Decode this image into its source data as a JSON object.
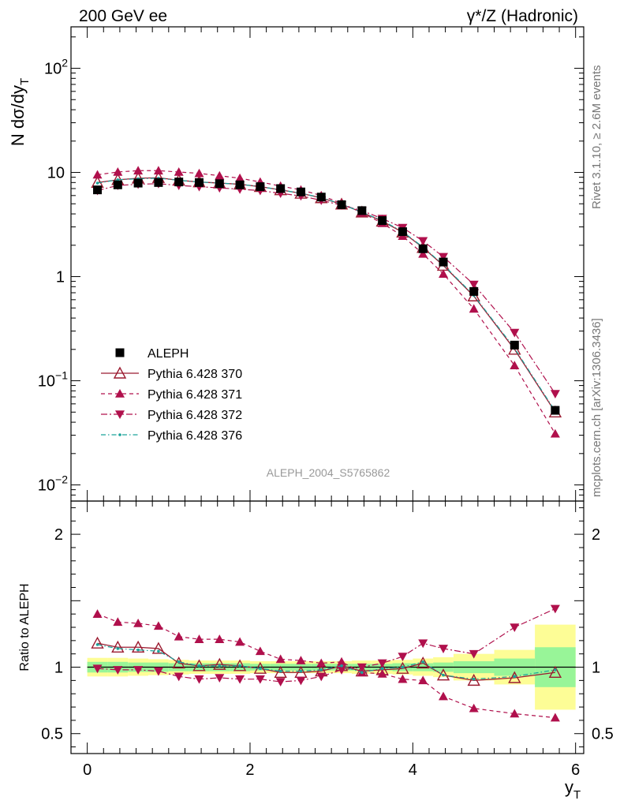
{
  "header": {
    "left_title": "200 GeV ee",
    "right_title": "γ*/Z (Hadronic)"
  },
  "side_labels": {
    "rivet": "Rivet 3.1.10, ≥ 2.6M events",
    "mcplots": "mcplots.cern.ch [arXiv:1306.3436]"
  },
  "analysis_id": "ALEPH_2004_S5765862",
  "colors": {
    "data": "#000000",
    "p370": "#9b1b30",
    "p371": "#b0104c",
    "p372": "#b0104c",
    "p376": "#1aa39a",
    "band_inner": "#98f598",
    "band_outer": "#fdfd96"
  },
  "chart_data": [
    {
      "type": "line",
      "panel": "main",
      "ylabel": "N dσ/dy",
      "ylabel_sub": "T",
      "yscale": "log",
      "ylim": [
        0.007,
        250
      ],
      "xlim": [
        -0.2,
        6.1
      ],
      "ytick_labels": [
        {
          "value": 0.01,
          "base": "10",
          "exp": "−2"
        },
        {
          "value": 0.1,
          "base": "10",
          "exp": "−1"
        },
        {
          "value": 1,
          "base": "1",
          "exp": ""
        },
        {
          "value": 10,
          "base": "10",
          "exp": ""
        },
        {
          "value": 100,
          "base": "10",
          "exp": "2"
        }
      ],
      "x": [
        0.125,
        0.375,
        0.625,
        0.875,
        1.125,
        1.375,
        1.625,
        1.875,
        2.125,
        2.375,
        2.625,
        2.875,
        3.125,
        3.375,
        3.625,
        3.875,
        4.125,
        4.375,
        4.75,
        5.25,
        5.75
      ],
      "series": [
        {
          "name": "ALEPH",
          "key": "data",
          "values": [
            6.8,
            7.6,
            7.9,
            8.0,
            8.1,
            8.0,
            7.8,
            7.6,
            7.3,
            7.0,
            6.5,
            5.8,
            4.9,
            4.3,
            3.45,
            2.7,
            1.85,
            1.38,
            0.72,
            0.22,
            0.052
          ]
        },
        {
          "name": "Pythia 6.428 370",
          "key": "p370",
          "values": [
            8.0,
            8.5,
            8.8,
            8.9,
            8.4,
            8.1,
            7.9,
            7.7,
            7.3,
            6.8,
            6.3,
            5.7,
            4.95,
            4.15,
            3.4,
            2.67,
            1.9,
            1.28,
            0.65,
            0.2,
            0.05
          ]
        },
        {
          "name": "Pythia 6.428 371",
          "key": "p371",
          "values": [
            9.5,
            10.1,
            10.4,
            10.4,
            10.1,
            9.8,
            9.3,
            8.8,
            8.1,
            7.4,
            6.8,
            6.0,
            5.05,
            4.1,
            3.25,
            2.45,
            1.65,
            1.06,
            0.49,
            0.14,
            0.031
          ]
        },
        {
          "name": "Pythia 6.428 372",
          "key": "p372",
          "values": [
            6.7,
            7.5,
            7.7,
            7.8,
            7.5,
            7.3,
            7.1,
            6.9,
            6.7,
            6.3,
            5.95,
            5.4,
            4.85,
            4.3,
            3.6,
            2.95,
            2.2,
            1.55,
            0.84,
            0.29,
            0.075
          ]
        },
        {
          "name": "Pythia 6.428 376",
          "key": "p376",
          "values": [
            7.9,
            8.5,
            8.7,
            8.8,
            8.4,
            8.1,
            7.9,
            7.7,
            7.3,
            6.8,
            6.3,
            5.75,
            4.95,
            4.15,
            3.45,
            2.7,
            1.92,
            1.3,
            0.66,
            0.205,
            0.051
          ]
        }
      ],
      "legend_position": "lower-left"
    },
    {
      "type": "line",
      "panel": "ratio",
      "ylabel": "Ratio to ALEPH",
      "xlabel": "y",
      "xlabel_sub": "T",
      "ylim": [
        0.35,
        2.25
      ],
      "xlim": [
        -0.2,
        6.1
      ],
      "ytick_labels": [
        {
          "value": 0.5,
          "label": "0.5"
        },
        {
          "value": 1,
          "label": "1"
        },
        {
          "value": 2,
          "label": "2"
        }
      ],
      "xtick_labels": [
        {
          "value": 0,
          "label": "0"
        },
        {
          "value": 2,
          "label": "2"
        },
        {
          "value": 4,
          "label": "4"
        },
        {
          "value": 6,
          "label": "6"
        }
      ],
      "bins": [
        [
          0,
          0.25
        ],
        [
          0.25,
          0.5
        ],
        [
          0.5,
          0.75
        ],
        [
          0.75,
          1.0
        ],
        [
          1.0,
          1.25
        ],
        [
          1.25,
          1.5
        ],
        [
          1.5,
          1.75
        ],
        [
          1.75,
          2.0
        ],
        [
          2.0,
          2.25
        ],
        [
          2.25,
          2.5
        ],
        [
          2.5,
          2.75
        ],
        [
          2.75,
          3.0
        ],
        [
          3.0,
          3.25
        ],
        [
          3.25,
          3.5
        ],
        [
          3.5,
          3.75
        ],
        [
          3.75,
          4.0
        ],
        [
          4.0,
          4.25
        ],
        [
          4.25,
          4.5
        ],
        [
          4.5,
          5.0
        ],
        [
          5.0,
          5.5
        ],
        [
          5.5,
          6.0
        ]
      ],
      "band_inner": [
        0.04,
        0.04,
        0.035,
        0.035,
        0.03,
        0.03,
        0.03,
        0.03,
        0.025,
        0.025,
        0.025,
        0.025,
        0.025,
        0.025,
        0.025,
        0.03,
        0.03,
        0.035,
        0.045,
        0.065,
        0.15
      ],
      "band_outer": [
        0.07,
        0.07,
        0.065,
        0.06,
        0.055,
        0.05,
        0.05,
        0.05,
        0.045,
        0.045,
        0.045,
        0.045,
        0.045,
        0.05,
        0.05,
        0.055,
        0.065,
        0.075,
        0.1,
        0.13,
        0.32
      ],
      "x": [
        0.125,
        0.375,
        0.625,
        0.875,
        1.125,
        1.375,
        1.625,
        1.875,
        2.125,
        2.375,
        2.625,
        2.875,
        3.125,
        3.375,
        3.625,
        3.875,
        4.125,
        4.375,
        4.75,
        5.25,
        5.75
      ],
      "series": [
        {
          "name": "Pythia 6.428 370",
          "key": "p370",
          "values": [
            1.18,
            1.15,
            1.15,
            1.14,
            1.03,
            1.01,
            1.02,
            1.01,
            0.99,
            0.96,
            0.96,
            0.97,
            1.01,
            0.97,
            0.98,
            0.99,
            1.03,
            0.94,
            0.9,
            0.92,
            0.96
          ]
        },
        {
          "name": "Pythia 6.428 371",
          "key": "p371",
          "values": [
            1.4,
            1.34,
            1.33,
            1.31,
            1.23,
            1.21,
            1.21,
            1.19,
            1.12,
            1.06,
            1.05,
            1.03,
            1.04,
            0.96,
            0.95,
            0.91,
            0.9,
            0.78,
            0.69,
            0.65,
            0.62
          ]
        },
        {
          "name": "Pythia 6.428 372",
          "key": "p372",
          "values": [
            0.99,
            0.98,
            0.98,
            0.97,
            0.93,
            0.91,
            0.92,
            0.91,
            0.91,
            0.89,
            0.9,
            0.93,
            0.98,
            1.0,
            1.03,
            1.08,
            1.18,
            1.14,
            1.1,
            1.3,
            1.44
          ]
        },
        {
          "name": "Pythia 6.428 376",
          "key": "p376",
          "values": [
            1.17,
            1.14,
            1.13,
            1.12,
            1.04,
            1.01,
            1.01,
            1.01,
            0.99,
            0.97,
            0.97,
            0.98,
            1.01,
            0.96,
            0.99,
            1.0,
            1.04,
            0.94,
            0.91,
            0.93,
            0.98
          ]
        }
      ]
    }
  ]
}
